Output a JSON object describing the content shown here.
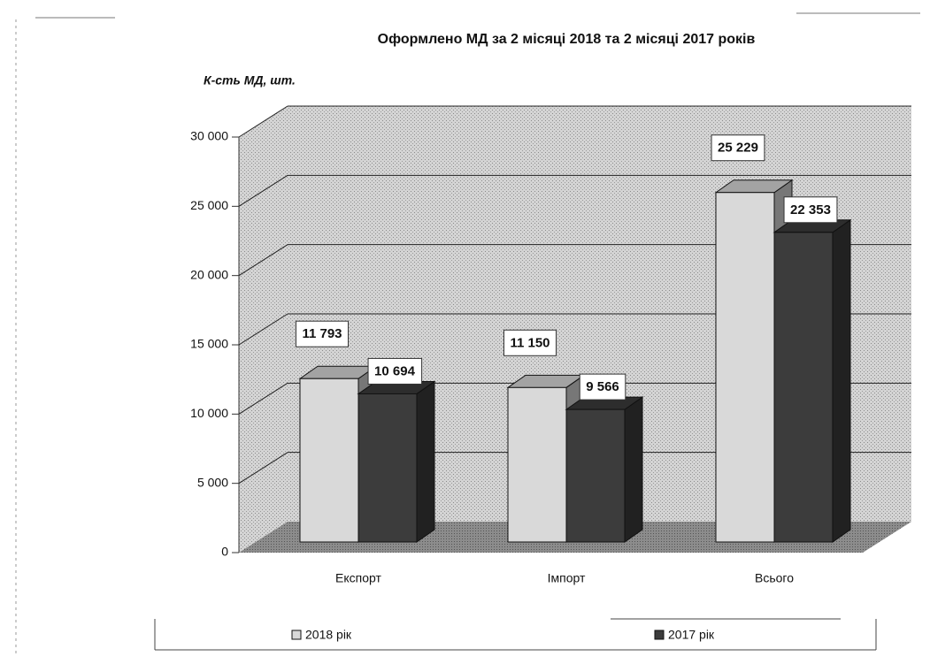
{
  "chart_data": {
    "type": "bar3d",
    "title": "Оформлено МД за 2 місяці 2018 та 2 місяці 2017 років",
    "y_label": "К-сть МД, шт.",
    "categories": [
      "Експорт",
      "Імпорт",
      "Всього"
    ],
    "series": [
      {
        "name": "2018 рік",
        "color": "#d9d9d9",
        "values": [
          11793,
          11150,
          25229
        ],
        "value_labels": [
          "11 793",
          "11 150",
          "25 229"
        ]
      },
      {
        "name": "2017 рік",
        "color": "#3c3c3c",
        "values": [
          10694,
          9566,
          22353
        ],
        "value_labels": [
          "10 694",
          "9 566",
          "22 353"
        ]
      }
    ],
    "ylim": [
      0,
      30000
    ],
    "yticks": [
      0,
      {
        "value": 5000,
        "label": "5 000"
      },
      {
        "value": 10000,
        "label": "10 000"
      },
      {
        "value": 15000,
        "label": "15 000"
      },
      {
        "value": 20000,
        "label": "20 000"
      },
      {
        "value": 25000,
        "label": "25 000"
      },
      {
        "value": 30000,
        "label": "30 000"
      }
    ],
    "grid": true
  }
}
